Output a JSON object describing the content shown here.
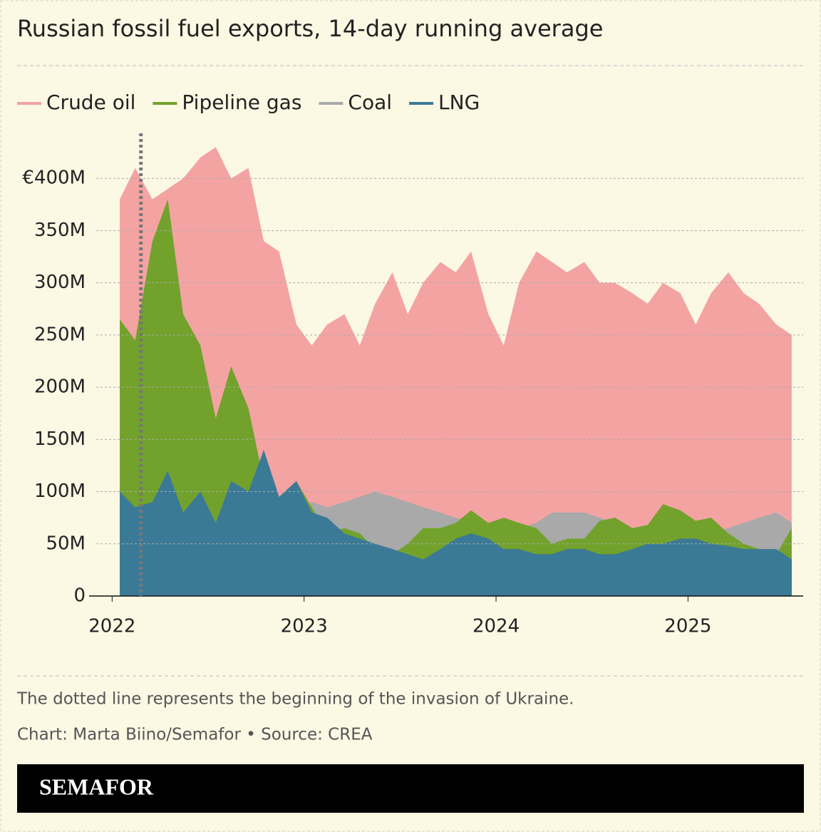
{
  "chart_data": {
    "type": "area",
    "title": "Russian fossil fuel exports, 14-day running average",
    "x": [
      2022.04,
      2022.12,
      2022.21,
      2022.29,
      2022.37,
      2022.46,
      2022.54,
      2022.62,
      2022.71,
      2022.79,
      2022.87,
      2022.96,
      2023.04,
      2023.12,
      2023.21,
      2023.29,
      2023.37,
      2023.46,
      2023.54,
      2023.62,
      2023.71,
      2023.79,
      2023.87,
      2023.96,
      2024.04,
      2024.12,
      2024.21,
      2024.29,
      2024.37,
      2024.46,
      2024.54,
      2024.62,
      2024.71,
      2024.79,
      2024.87,
      2024.96,
      2025.04,
      2025.12,
      2025.21,
      2025.29,
      2025.37,
      2025.46,
      2025.54
    ],
    "series": [
      {
        "name": "Crude oil",
        "color": "#f4a3a3",
        "values": [
          380,
          410,
          380,
          390,
          400,
          420,
          430,
          400,
          410,
          340,
          330,
          260,
          240,
          260,
          270,
          240,
          280,
          310,
          270,
          300,
          320,
          310,
          330,
          270,
          240,
          300,
          330,
          320,
          310,
          320,
          300,
          300,
          290,
          280,
          300,
          290,
          260,
          290,
          310,
          290,
          280,
          260,
          250
        ]
      },
      {
        "name": "Pipeline gas",
        "color": "#72a22c",
        "values": [
          265,
          245,
          340,
          380,
          270,
          240,
          170,
          220,
          180,
          110,
          95,
          110,
          85,
          60,
          65,
          60,
          45,
          40,
          50,
          65,
          65,
          70,
          82,
          70,
          75,
          70,
          65,
          50,
          55,
          55,
          72,
          75,
          65,
          68,
          88,
          82,
          72,
          75,
          60,
          50,
          45,
          40,
          65
        ]
      },
      {
        "name": "Coal",
        "color": "#a9a9a9",
        "values": [
          75,
          75,
          75,
          75,
          75,
          75,
          75,
          75,
          75,
          75,
          80,
          80,
          90,
          85,
          90,
          95,
          100,
          95,
          90,
          85,
          80,
          75,
          70,
          65,
          60,
          65,
          70,
          80,
          80,
          80,
          75,
          70,
          65,
          65,
          60,
          60,
          60,
          60,
          65,
          70,
          75,
          80,
          70
        ]
      },
      {
        "name": "LNG",
        "color": "#3a7a96",
        "values": [
          100,
          85,
          90,
          120,
          80,
          100,
          70,
          110,
          100,
          140,
          95,
          110,
          80,
          75,
          60,
          55,
          50,
          45,
          40,
          35,
          45,
          55,
          60,
          55,
          45,
          45,
          40,
          40,
          45,
          45,
          40,
          40,
          45,
          50,
          50,
          55,
          55,
          50,
          48,
          45,
          45,
          45,
          35
        ]
      }
    ],
    "draw_order": [
      "Crude oil",
      "Coal",
      "Pipeline gas",
      "LNG"
    ],
    "xlim": [
      2021.88,
      2025.6
    ],
    "xticks": [
      2022,
      2023,
      2024,
      2025
    ],
    "ylim": [
      0,
      450
    ],
    "yticks": [
      0,
      {
        "value": 50,
        "label": "50M"
      },
      {
        "value": 100,
        "label": "100M"
      },
      {
        "value": 150,
        "label": "150M"
      },
      {
        "value": 200,
        "label": "200M"
      },
      {
        "value": 250,
        "label": "250M"
      },
      {
        "value": 300,
        "label": "300M"
      },
      {
        "value": 350,
        "label": "350M"
      },
      {
        "value": 400,
        "label": "€400M"
      }
    ],
    "grid": true,
    "reference_line": {
      "x": 2022.15
    },
    "note": "The dotted line represents the beginning of the invasion of Ukraine.",
    "credit": "Chart: Marta Biino/Semafor • Source: CREA",
    "brand": "SEMAFOR"
  }
}
